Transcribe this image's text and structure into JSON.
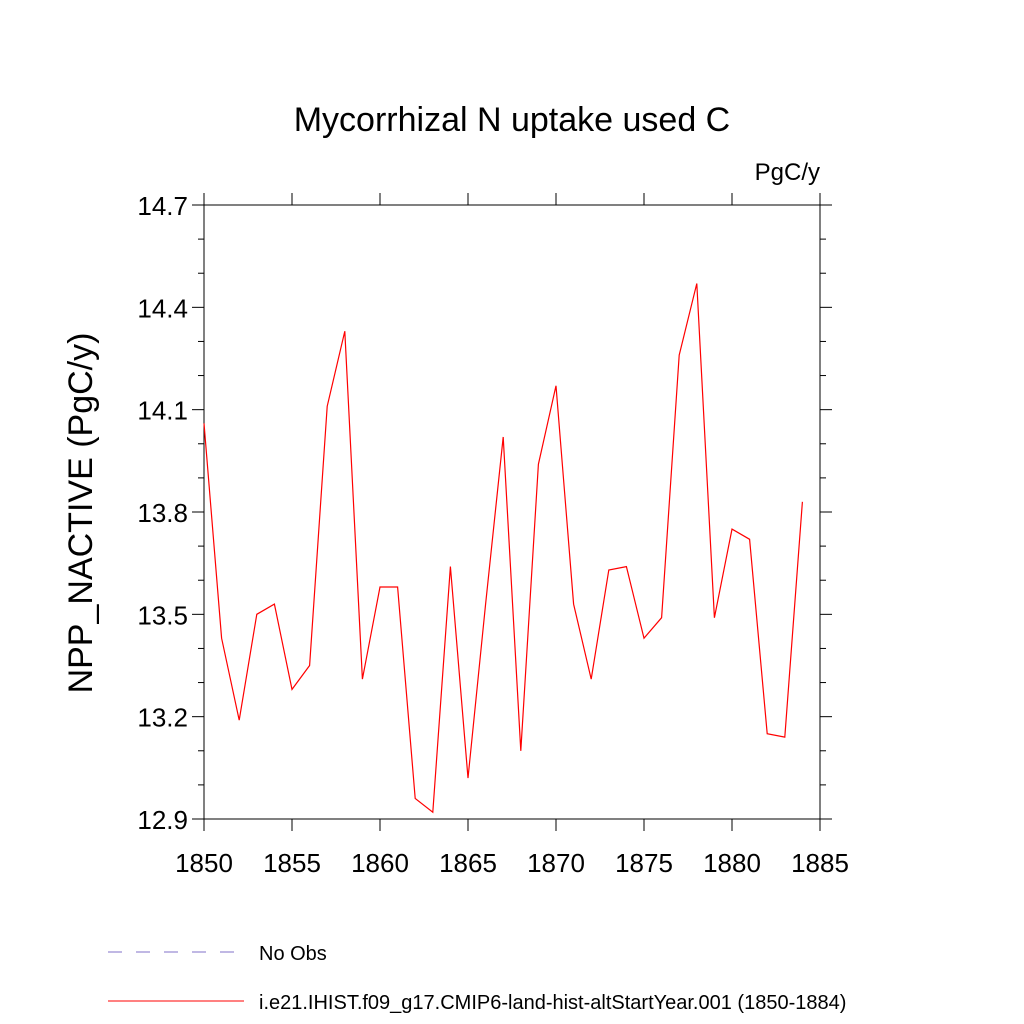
{
  "chart_data": {
    "type": "line",
    "title": "Mycorrhizal N uptake used C",
    "units": "PgC/y",
    "ylabel": "NPP_NACTIVE  (PgC/y)",
    "xlabel": "",
    "xlim": [
      1850,
      1885
    ],
    "ylim": [
      12.9,
      14.7
    ],
    "x_ticks": [
      "1850",
      "1855",
      "1860",
      "1865",
      "1870",
      "1875",
      "1880",
      "1885"
    ],
    "y_ticks": [
      "12.9",
      "13.2",
      "13.5",
      "13.8",
      "14.1",
      "14.4",
      "14.7"
    ],
    "grid": false,
    "legend_position": "bottom-left",
    "series": [
      {
        "name": "i.e21.IHIST.f09_g17.CMIP6-land-hist-altStartYear.001 (1850-1884)",
        "color": "#ff0000",
        "style": "solid",
        "x": [
          1850,
          1851,
          1852,
          1853,
          1854,
          1855,
          1856,
          1857,
          1858,
          1859,
          1860,
          1861,
          1862,
          1863,
          1864,
          1865,
          1866,
          1867,
          1868,
          1869,
          1870,
          1871,
          1872,
          1873,
          1874,
          1875,
          1876,
          1877,
          1878,
          1879,
          1880,
          1881,
          1882,
          1883,
          1884
        ],
        "values": [
          14.06,
          13.43,
          13.19,
          13.5,
          13.53,
          13.28,
          13.35,
          14.11,
          14.33,
          13.31,
          13.58,
          13.58,
          12.96,
          12.92,
          13.64,
          13.02,
          13.53,
          14.02,
          13.1,
          13.94,
          14.17,
          13.53,
          13.31,
          13.63,
          13.64,
          13.43,
          13.49,
          14.26,
          14.47,
          13.49,
          13.75,
          13.72,
          13.15,
          13.14,
          13.83
        ]
      }
    ],
    "legend": [
      {
        "label": "No Obs",
        "color": "#8070c8",
        "style": "dashed"
      },
      {
        "label": "i.e21.IHIST.f09_g17.CMIP6-land-hist-altStartYear.001 (1850-1884)",
        "color": "#ff0000",
        "style": "solid"
      }
    ]
  }
}
